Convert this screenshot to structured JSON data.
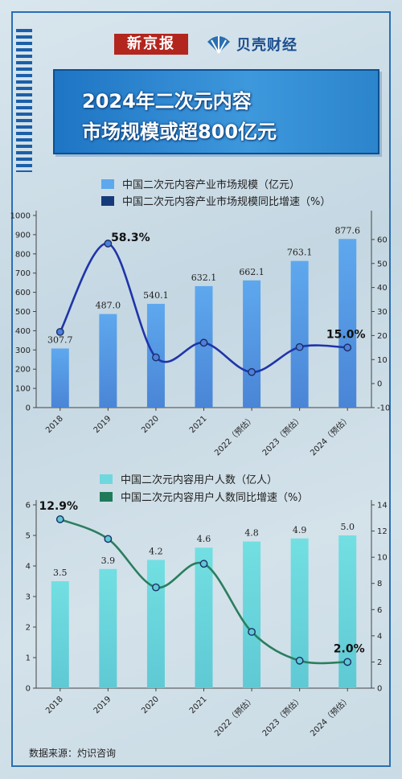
{
  "header": {
    "logo_left": "新京报",
    "logo_right": "贝壳财经",
    "title_line1": "2024年二次元内容",
    "title_line2": "市场规模或超800亿元"
  },
  "source": "数据来源：灼识咨询",
  "colors": {
    "bar_top": "#5fa6ea",
    "bar_bottom": "#4b86d8",
    "line_top": "#1d33a8",
    "bar2": "#6ed8de",
    "line2": "#1f7a5a",
    "frame": "#2a6fb0"
  },
  "chart_data": [
    {
      "type": "bar",
      "categories": [
        "2018",
        "2019",
        "2020",
        "2021",
        "2022（预估）",
        "2023（预估）",
        "2024（预估）"
      ],
      "series": [
        {
          "name": "中国二次元内容产业市场规模（亿元）",
          "type": "bar",
          "axis": "left",
          "values": [
            307.7,
            487.0,
            540.1,
            632.1,
            662.1,
            763.1,
            877.6
          ],
          "labels": [
            "307.7",
            "487.0",
            "540.1",
            "632.1",
            "662.1",
            "763.1",
            "877.6"
          ]
        },
        {
          "name": "中国二次元内容产业市场规模同比增速（%）",
          "type": "line",
          "axis": "right",
          "values": [
            21.5,
            58.3,
            10.9,
            17.0,
            4.8,
            15.2,
            15.0
          ],
          "annotations": [
            {
              "index": 1,
              "text": "58.3%"
            },
            {
              "index": 6,
              "text": "15.0%"
            }
          ]
        }
      ],
      "ylim_left": [
        0,
        1000
      ],
      "yticks_left": [
        "0",
        "100",
        "200",
        "300",
        "400",
        "500",
        "600",
        "700",
        "800",
        "900",
        "1000"
      ],
      "ylim_right": [
        -10,
        70
      ],
      "yticks_right": [
        "-10",
        "0",
        "10",
        "20",
        "30",
        "40",
        "50",
        "60"
      ]
    },
    {
      "type": "bar",
      "categories": [
        "2018",
        "2019",
        "2020",
        "2021",
        "2022（预估）",
        "2023（预估）",
        "2024（预估）"
      ],
      "series": [
        {
          "name": "中国二次元内容用户人数（亿人）",
          "type": "bar",
          "axis": "left",
          "values": [
            3.5,
            3.9,
            4.2,
            4.6,
            4.8,
            4.9,
            5.0
          ],
          "labels": [
            "3.5",
            "3.9",
            "4.2",
            "4.6",
            "4.8",
            "4.9",
            "5.0"
          ]
        },
        {
          "name": "中国二次元内容用户人数同比增速（%）",
          "type": "line",
          "axis": "right",
          "values": [
            12.9,
            11.4,
            7.7,
            9.5,
            4.3,
            2.1,
            2.0
          ],
          "annotations": [
            {
              "index": 0,
              "text": "12.9%"
            },
            {
              "index": 6,
              "text": "2.0%"
            }
          ]
        }
      ],
      "ylim_left": [
        0,
        6
      ],
      "yticks_left": [
        "0",
        "1",
        "2",
        "3",
        "4",
        "5",
        "6"
      ],
      "ylim_right": [
        0,
        14
      ],
      "yticks_right": [
        "0",
        "2",
        "4",
        "6",
        "8",
        "10",
        "12",
        "14"
      ]
    }
  ]
}
